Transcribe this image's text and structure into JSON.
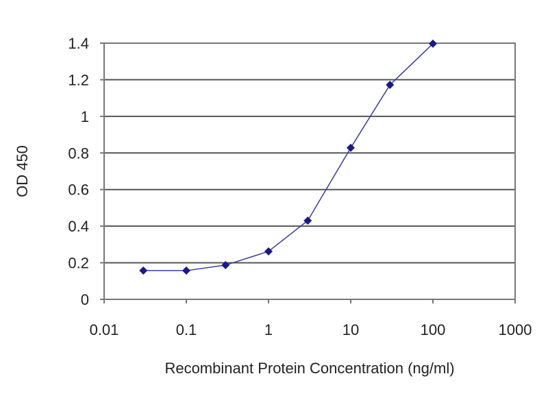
{
  "chart_data": {
    "type": "line",
    "title": "",
    "xlabel": "Recombinant Protein Concentration (ng/ml)",
    "ylabel": "OD 450",
    "x_scale": "log",
    "xlim": [
      0.01,
      1000
    ],
    "ylim": [
      0,
      1.4
    ],
    "x_ticks": [
      "0.01",
      "0.1",
      "1",
      "10",
      "100",
      "1000"
    ],
    "y_ticks": [
      "0",
      "0.2",
      "0.4",
      "0.6",
      "0.8",
      "1",
      "1.2",
      "1.4"
    ],
    "grid": "horizontal",
    "legend": "none",
    "series": [
      {
        "x": [
          0.03,
          0.1,
          0.3,
          1,
          3,
          10,
          30,
          100
        ],
        "y": [
          0.157,
          0.157,
          0.187,
          0.262,
          0.43,
          0.828,
          1.172,
          1.397
        ],
        "color": "#1a1a80"
      }
    ]
  }
}
